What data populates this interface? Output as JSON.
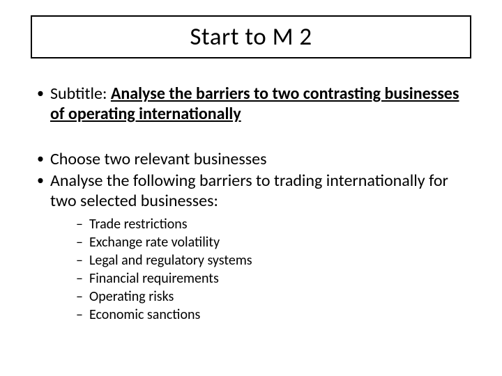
{
  "slide": {
    "title": "Start to M 2",
    "subtitle_label": "Subtitle: ",
    "subtitle_bold": "Analyse the barriers to two contrasting businesses of operating internationally",
    "bullets": [
      "Choose two relevant businesses",
      "Analyse the following barriers to trading internationally for two selected businesses:"
    ],
    "sub_bullets": [
      "Trade restrictions",
      "Exchange rate volatility",
      "Legal and regulatory systems",
      "Financial requirements",
      "Operating risks",
      "Economic sanctions"
    ]
  },
  "style": {
    "background_color": "#ffffff",
    "text_color": "#000000",
    "title_border_color": "#000000",
    "title_fontsize": 35,
    "bullet_fontsize": 24,
    "sub_bullet_fontsize": 20,
    "font_family": "Calibri"
  }
}
